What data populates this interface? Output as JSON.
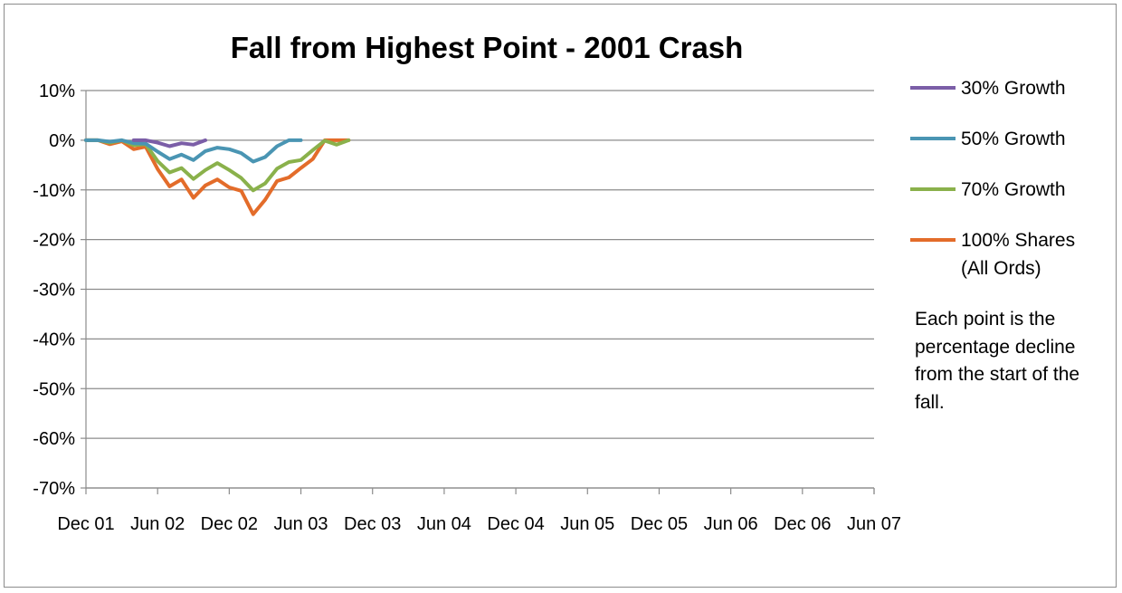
{
  "chart_data": {
    "type": "line",
    "title": "Fall from Highest Point - 2001 Crash",
    "xlabel": "",
    "ylabel": "",
    "ylim": [
      -70,
      10
    ],
    "yticks": [
      "10%",
      "0%",
      "-10%",
      "-20%",
      "-30%",
      "-40%",
      "-50%",
      "-60%",
      "-70%"
    ],
    "x_tick_labels": [
      "Dec 01",
      "Jun 02",
      "Dec 02",
      "Jun 03",
      "Dec 03",
      "Jun 04",
      "Dec 04",
      "Jun 05",
      "Dec 05",
      "Jun 06",
      "Dec 06",
      "Jun 07"
    ],
    "x_unit": "months since Dec 01",
    "x_range": [
      0,
      66
    ],
    "grid": true,
    "legend_position": "right",
    "series": [
      {
        "name": "30% Growth",
        "color": "#7b5ea7",
        "x": [
          4,
          5,
          6,
          7,
          8,
          9,
          10
        ],
        "values": [
          0,
          0,
          -0.5,
          -1.2,
          -0.6,
          -0.9,
          0
        ]
      },
      {
        "name": "50% Growth",
        "color": "#4a95b3",
        "x": [
          0,
          1,
          2,
          3,
          4,
          5,
          6,
          7,
          8,
          9,
          10,
          11,
          12,
          13,
          14,
          15,
          16,
          17,
          18
        ],
        "values": [
          0,
          0,
          -0.3,
          0,
          -0.6,
          -0.7,
          -2.3,
          -3.8,
          -2.9,
          -4,
          -2.2,
          -1.5,
          -1.8,
          -2.6,
          -4.3,
          -3.4,
          -1.2,
          0,
          0
        ]
      },
      {
        "name": "70% Growth",
        "color": "#8ab14b",
        "x": [
          0,
          1,
          2,
          3,
          4,
          5,
          6,
          7,
          8,
          9,
          10,
          11,
          12,
          13,
          14,
          15,
          16,
          17,
          18,
          19,
          20,
          21,
          22
        ],
        "values": [
          0,
          0,
          -0.5,
          0,
          -1,
          -0.8,
          -4.2,
          -6.5,
          -5.6,
          -7.8,
          -6,
          -4.6,
          -6,
          -7.6,
          -10.1,
          -8.7,
          -5.7,
          -4.4,
          -4,
          -2,
          -0.1,
          -0.9,
          0
        ]
      },
      {
        "name": "100% Shares (All Ords)",
        "color": "#e36c2a",
        "x": [
          0,
          1,
          2,
          3,
          4,
          5,
          6,
          7,
          8,
          9,
          10,
          11,
          12,
          13,
          14,
          15,
          16,
          17,
          18,
          19,
          20,
          21,
          22
        ],
        "values": [
          0,
          0,
          -0.8,
          -0.2,
          -1.8,
          -1.3,
          -5.8,
          -9.3,
          -7.9,
          -11.6,
          -9.1,
          -7.9,
          -9.5,
          -10.2,
          -14.9,
          -12,
          -8.2,
          -7.5,
          -5.6,
          -3.8,
          0,
          0,
          0
        ]
      }
    ],
    "note": "Each point is the percentage decline from the start of the fall."
  }
}
